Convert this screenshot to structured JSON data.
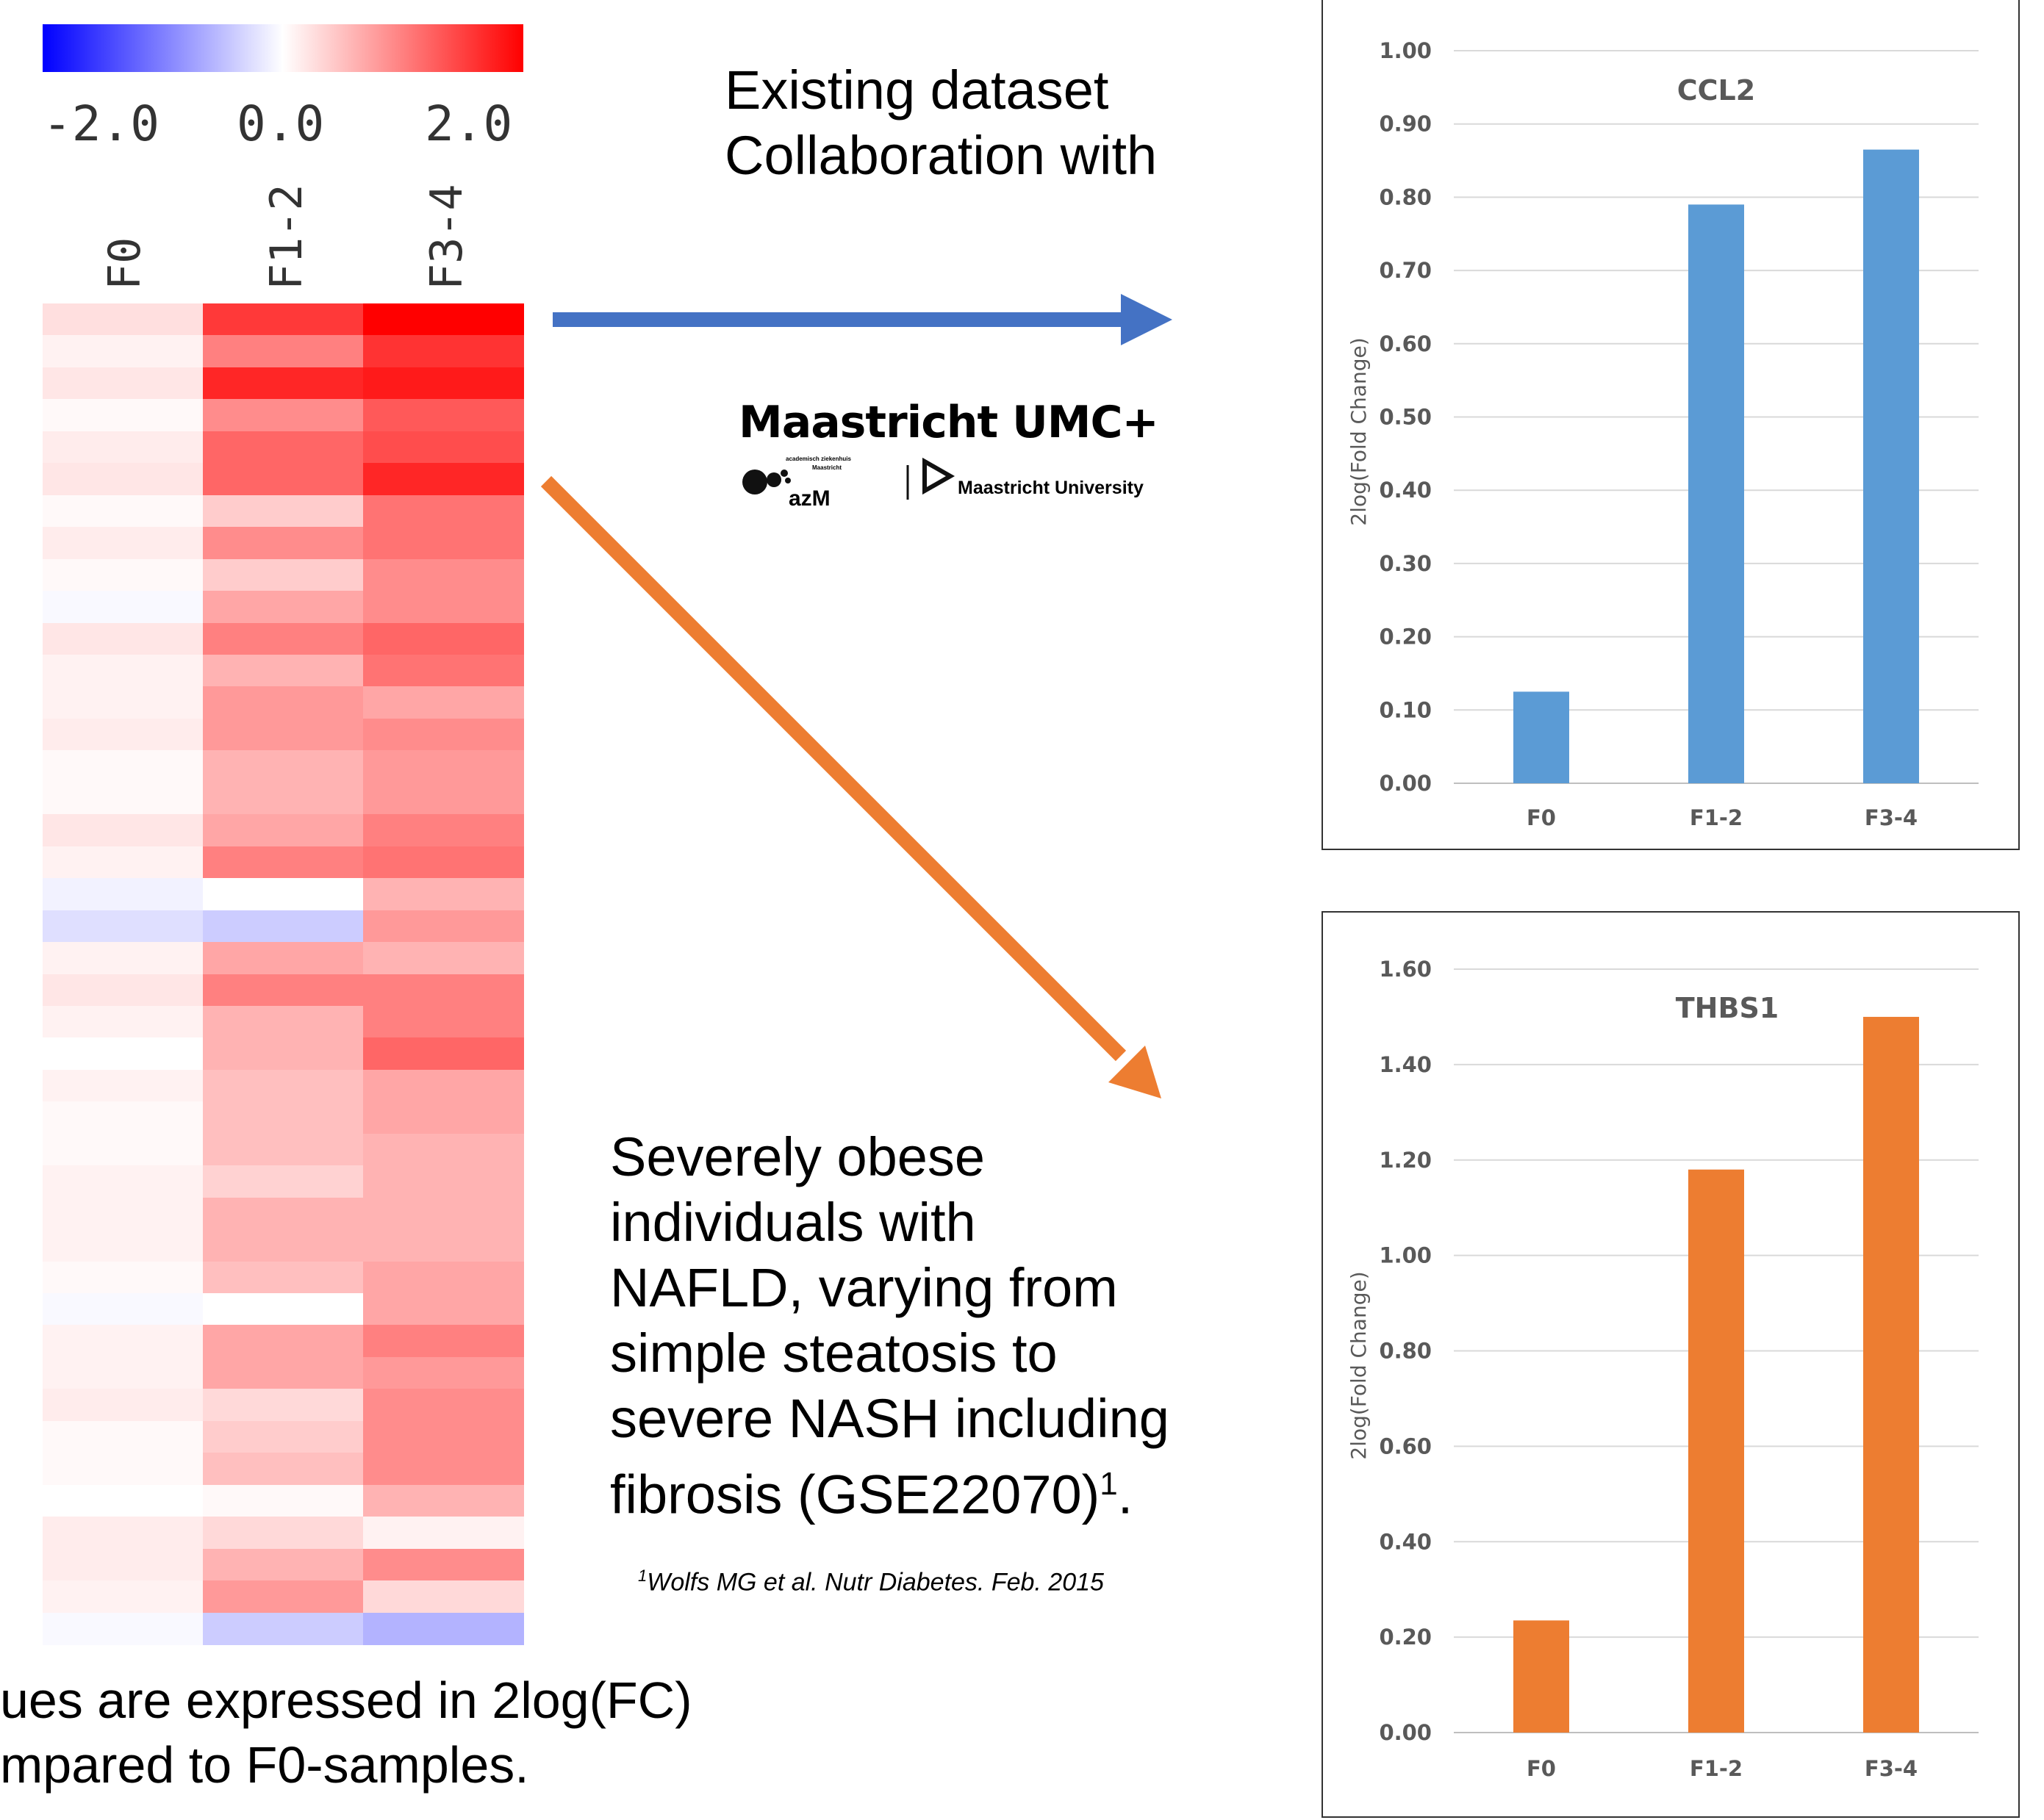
{
  "heatmap": {
    "scale_labels": [
      "-2.0",
      "0.0",
      "2.0"
    ],
    "columns": [
      "F0",
      "F1-2",
      "F3-4"
    ],
    "color_scale": {
      "min": -2.0,
      "max": 2.0,
      "low": "#0000ff",
      "mid": "#ffffff",
      "high": "#ff0000"
    },
    "rows": [
      [
        0.25,
        1.55,
        2.0
      ],
      [
        0.1,
        1.0,
        1.6
      ],
      [
        0.2,
        1.7,
        1.8
      ],
      [
        0.05,
        0.9,
        1.3
      ],
      [
        0.15,
        1.2,
        1.4
      ],
      [
        0.2,
        1.2,
        1.7
      ],
      [
        0.05,
        0.4,
        1.1
      ],
      [
        0.15,
        0.9,
        1.1
      ],
      [
        0.05,
        0.4,
        0.9
      ],
      [
        -0.05,
        0.7,
        0.9
      ],
      [
        0.2,
        1.0,
        1.2
      ],
      [
        0.1,
        0.6,
        1.1
      ],
      [
        0.1,
        0.8,
        0.7
      ],
      [
        0.15,
        0.8,
        0.9
      ],
      [
        0.05,
        0.6,
        0.8
      ],
      [
        0.05,
        0.6,
        0.8
      ],
      [
        0.2,
        0.7,
        1.0
      ],
      [
        0.1,
        1.0,
        1.1
      ],
      [
        -0.1,
        0.0,
        0.6
      ],
      [
        -0.25,
        -0.4,
        0.8
      ],
      [
        0.1,
        0.7,
        0.6
      ],
      [
        0.2,
        1.0,
        1.0
      ],
      [
        0.1,
        0.6,
        1.0
      ],
      [
        0.0,
        0.6,
        1.2
      ],
      [
        0.1,
        0.5,
        0.7
      ],
      [
        0.05,
        0.5,
        0.7
      ],
      [
        0.05,
        0.5,
        0.6
      ],
      [
        0.1,
        0.35,
        0.6
      ],
      [
        0.1,
        0.6,
        0.6
      ],
      [
        0.1,
        0.6,
        0.6
      ],
      [
        0.05,
        0.5,
        0.7
      ],
      [
        -0.05,
        0.0,
        0.7
      ],
      [
        0.1,
        0.7,
        1.0
      ],
      [
        0.1,
        0.7,
        0.8
      ],
      [
        0.15,
        0.3,
        0.9
      ],
      [
        0.05,
        0.4,
        0.9
      ],
      [
        0.05,
        0.5,
        0.9
      ],
      [
        0.0,
        0.05,
        0.6
      ],
      [
        0.15,
        0.3,
        0.1
      ],
      [
        0.15,
        0.6,
        0.9
      ],
      [
        0.1,
        0.8,
        0.3
      ],
      [
        -0.05,
        -0.4,
        -0.6
      ]
    ]
  },
  "text": {
    "dataset_line1": "Existing dataset",
    "dataset_line2": "Collaboration with",
    "cohort_lines": [
      "Severely obese",
      "individuals with",
      "NAFLD, varying from",
      "simple steatosis to",
      "severe NASH including"
    ],
    "cohort_last": "fibrosis (GSE22070)",
    "cohort_superscript": "1",
    "cohort_end": ".",
    "reference_superscript": "1",
    "reference": "Wolfs MG et al. Nutr Diabetes. Feb. 2015",
    "footnote_line1": "ues are expressed in 2log(FC)",
    "footnote_line2": "mpared to F0-samples."
  },
  "logo": {
    "title": "Maastricht UMC+",
    "azm": "azM",
    "azm_small_1": "academisch ziekenhuis",
    "azm_small_2": "Maastricht",
    "university": "Maastricht University"
  },
  "colors": {
    "blue_arrow": "#4472c4",
    "orange_arrow": "#ed7d31",
    "ccl2_bar": "#5b9bd5",
    "thbs1_bar": "#ed7d31"
  },
  "chart_data": [
    {
      "type": "bar",
      "title": "CCL2",
      "categories": [
        "F0",
        "F1-2",
        "F3-4"
      ],
      "values": [
        0.125,
        0.79,
        0.865
      ],
      "ylabel": "2log(Fold Change)",
      "ylim": [
        0,
        1.0
      ],
      "yticks": [
        "0.00",
        "0.10",
        "0.20",
        "0.30",
        "0.40",
        "0.50",
        "0.60",
        "0.70",
        "0.80",
        "0.90",
        "1.00"
      ],
      "grid": true,
      "color": "#5b9bd5"
    },
    {
      "type": "bar",
      "title": "THBS1",
      "categories": [
        "F0",
        "F1-2",
        "F3-4"
      ],
      "values": [
        0.235,
        1.18,
        1.5
      ],
      "ylabel": "2log(Fold Change)",
      "ylim": [
        0,
        1.6
      ],
      "yticks": [
        "0.00",
        "0.20",
        "0.40",
        "0.60",
        "0.80",
        "1.00",
        "1.20",
        "1.40",
        "1.60"
      ],
      "grid": true,
      "color": "#ed7d31"
    }
  ]
}
